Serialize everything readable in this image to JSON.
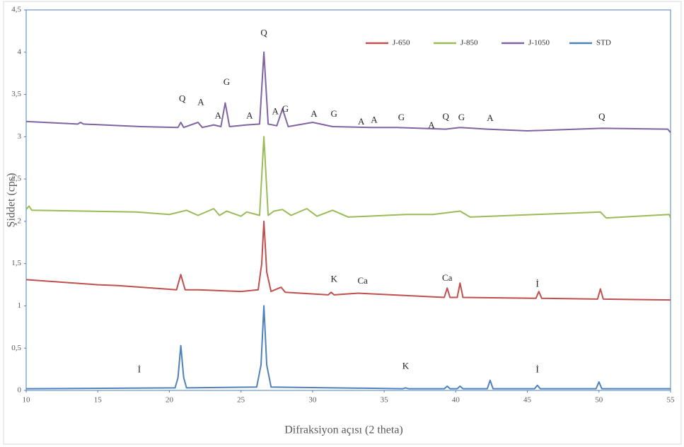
{
  "chart_data": {
    "type": "line",
    "y_label": "Şiddet (cps)",
    "x_label": "Difraksiyon açısı (2 theta)",
    "xlim": [
      10,
      55
    ],
    "xticks": [
      10,
      15,
      20,
      25,
      30,
      35,
      40,
      45,
      50,
      55
    ],
    "ylim": [
      0,
      4.5
    ],
    "yticks": [
      0,
      {
        "value": 0.5,
        "label": "0,5"
      },
      1,
      {
        "value": 1.5,
        "label": "1,5"
      },
      2,
      {
        "value": 2.5,
        "label": "2,5"
      },
      3,
      {
        "value": 3.5,
        "label": "3,5"
      },
      4,
      {
        "value": 4.5,
        "label": "4,5"
      }
    ],
    "legend": "top-right",
    "series": [
      {
        "name": "J-650",
        "color": "#c0504d",
        "x": [
          10,
          15,
          16.4,
          20.5,
          20.8,
          21.1,
          22,
          25,
          26.2,
          26.45,
          26.6,
          26.8,
          27.1,
          27.8,
          28.1,
          31.1,
          31.3,
          31.5,
          33.2,
          39.2,
          39.4,
          39.6,
          40.1,
          40.3,
          40.5,
          45.6,
          45.8,
          46,
          49.9,
          50.1,
          50.3,
          55
        ],
        "values": [
          1.31,
          1.25,
          1.24,
          1.19,
          1.37,
          1.19,
          1.19,
          1.17,
          1.19,
          1.5,
          2.0,
          1.4,
          1.17,
          1.22,
          1.16,
          1.13,
          1.16,
          1.13,
          1.15,
          1.1,
          1.21,
          1.1,
          1.1,
          1.27,
          1.1,
          1.09,
          1.17,
          1.09,
          1.08,
          1.2,
          1.08,
          1.07
        ]
      },
      {
        "name": "J-850",
        "color": "#9bbb59",
        "x": [
          10,
          10.2,
          10.4,
          17.7,
          20,
          21.2,
          22,
          23.1,
          23.5,
          24,
          25,
          25.4,
          26.3,
          26.6,
          26.9,
          27.3,
          27.9,
          28.5,
          29.6,
          30.3,
          31.4,
          32.5,
          36.5,
          38.4,
          40.3,
          41,
          50.1,
          50.5,
          54.9,
          55
        ],
        "values": [
          2.14,
          2.18,
          2.13,
          2.11,
          2.08,
          2.13,
          2.07,
          2.15,
          2.07,
          2.12,
          2.06,
          2.11,
          2.07,
          3.0,
          2.07,
          2.12,
          2.14,
          2.07,
          2.15,
          2.06,
          2.13,
          2.05,
          2.08,
          2.08,
          2.12,
          2.05,
          2.11,
          2.04,
          2.08,
          2.04
        ]
      },
      {
        "name": "J-1050",
        "color": "#8064a2",
        "x": [
          10,
          13.6,
          13.8,
          14,
          18,
          20.6,
          20.8,
          21,
          22,
          22.3,
          23.1,
          23.6,
          23.9,
          24.2,
          25.4,
          26.3,
          26.6,
          26.9,
          27.5,
          27.9,
          28.3,
          30,
          31.4,
          34.1,
          35.9,
          39.3,
          40.3,
          42.2,
          45,
          50.2,
          54.8,
          55
        ],
        "values": [
          3.18,
          3.15,
          3.17,
          3.15,
          3.12,
          3.11,
          3.17,
          3.11,
          3.17,
          3.11,
          3.14,
          3.12,
          3.4,
          3.12,
          3.14,
          3.15,
          4.0,
          3.15,
          3.13,
          3.33,
          3.12,
          3.17,
          3.12,
          3.11,
          3.11,
          3.09,
          3.11,
          3.09,
          3.07,
          3.1,
          3.09,
          3.05
        ]
      },
      {
        "name": "STD",
        "color": "#4f81bd",
        "x": [
          10,
          20.4,
          20.6,
          20.8,
          21.0,
          21.2,
          26.1,
          26.4,
          26.6,
          26.8,
          27.1,
          36.3,
          36.5,
          36.7,
          39.2,
          39.4,
          39.6,
          40.1,
          40.3,
          40.5,
          42.2,
          42.4,
          42.6,
          45.5,
          45.7,
          45.9,
          49.8,
          50.0,
          50.2,
          55
        ],
        "values": [
          0.02,
          0.03,
          0.15,
          0.53,
          0.15,
          0.03,
          0.04,
          0.3,
          1.0,
          0.3,
          0.04,
          0.02,
          0.03,
          0.02,
          0.02,
          0.05,
          0.02,
          0.02,
          0.05,
          0.02,
          0.02,
          0.12,
          0.02,
          0.02,
          0.06,
          0.02,
          0.02,
          0.1,
          0.02,
          0.02
        ]
      }
    ],
    "annotations": [
      {
        "text": "Q",
        "x": 20.9,
        "y": 3.44
      },
      {
        "text": "A",
        "x": 22.2,
        "y": 3.4
      },
      {
        "text": "A",
        "x": 23.4,
        "y": 3.24
      },
      {
        "text": "G",
        "x": 24.0,
        "y": 3.64
      },
      {
        "text": "A",
        "x": 25.6,
        "y": 3.24
      },
      {
        "text": "Q",
        "x": 26.6,
        "y": 4.22
      },
      {
        "text": "A",
        "x": 27.4,
        "y": 3.29
      },
      {
        "text": "G",
        "x": 28.1,
        "y": 3.32
      },
      {
        "text": "A",
        "x": 30.1,
        "y": 3.26
      },
      {
        "text": "G",
        "x": 31.5,
        "y": 3.26
      },
      {
        "text": "A",
        "x": 33.4,
        "y": 3.17
      },
      {
        "text": "A",
        "x": 34.3,
        "y": 3.19
      },
      {
        "text": "G",
        "x": 36.2,
        "y": 3.22
      },
      {
        "text": "A",
        "x": 38.3,
        "y": 3.13
      },
      {
        "text": "Q",
        "x": 39.3,
        "y": 3.23
      },
      {
        "text": "G",
        "x": 40.4,
        "y": 3.22
      },
      {
        "text": "A",
        "x": 42.4,
        "y": 3.21
      },
      {
        "text": "Q",
        "x": 50.2,
        "y": 3.23
      },
      {
        "text": "K",
        "x": 31.5,
        "y": 1.31
      },
      {
        "text": "Ca",
        "x": 33.5,
        "y": 1.29
      },
      {
        "text": "Ca",
        "x": 39.4,
        "y": 1.32
      },
      {
        "text": "İ",
        "x": 45.7,
        "y": 1.25
      },
      {
        "text": "İ",
        "x": 17.9,
        "y": 0.24
      },
      {
        "text": "K",
        "x": 36.5,
        "y": 0.28
      },
      {
        "text": "İ",
        "x": 45.7,
        "y": 0.24
      }
    ]
  }
}
